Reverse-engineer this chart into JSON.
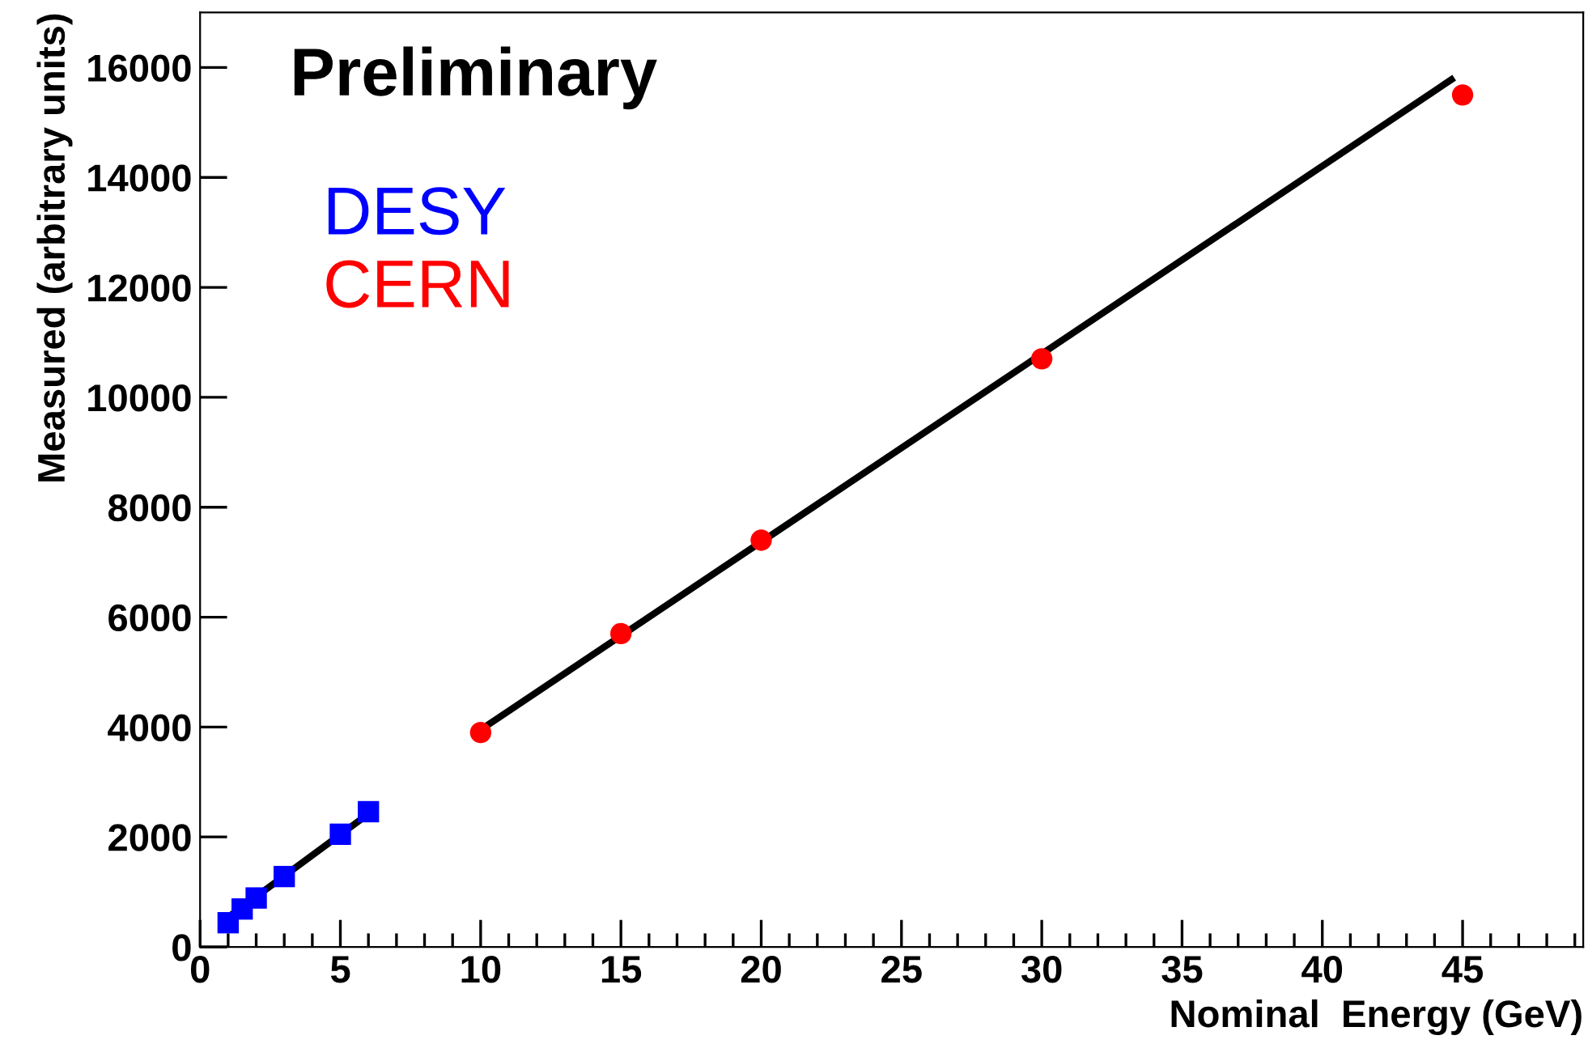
{
  "chart_data": {
    "type": "scatter",
    "xlabel": "Nominal  Energy (GeV)",
    "ylabel": "Measured (arbitrary units)",
    "annotations": [
      "Preliminary"
    ],
    "xlim": [
      0,
      49.3
    ],
    "xticks": [
      0,
      5,
      10,
      15,
      20,
      25,
      30,
      35,
      40,
      45
    ],
    "ylim": [
      0,
      17000
    ],
    "yticks": [
      0,
      2000,
      4000,
      6000,
      8000,
      10000,
      12000,
      14000,
      16000
    ],
    "grid": false,
    "legend": "top left",
    "series": [
      {
        "name": "DESY",
        "marker": "square",
        "color": "#0000ff",
        "x": [
          1,
          1.5,
          2,
          3,
          5,
          6
        ],
        "values": [
          440,
          690,
          890,
          1280,
          2050,
          2460
        ]
      },
      {
        "name": "CERN",
        "marker": "circle",
        "color": "#ff0000",
        "x": [
          10,
          15,
          20,
          30,
          45
        ],
        "values": [
          3900,
          5700,
          7400,
          10700,
          15500
        ]
      },
      {
        "type": "line",
        "color": "#000000",
        "x": [
          1,
          6
        ],
        "values": [
          540,
          2420
        ]
      },
      {
        "type": "line",
        "color": "#000000",
        "x": [
          10,
          44.6
        ],
        "values": [
          3950,
          15780
        ]
      }
    ]
  }
}
